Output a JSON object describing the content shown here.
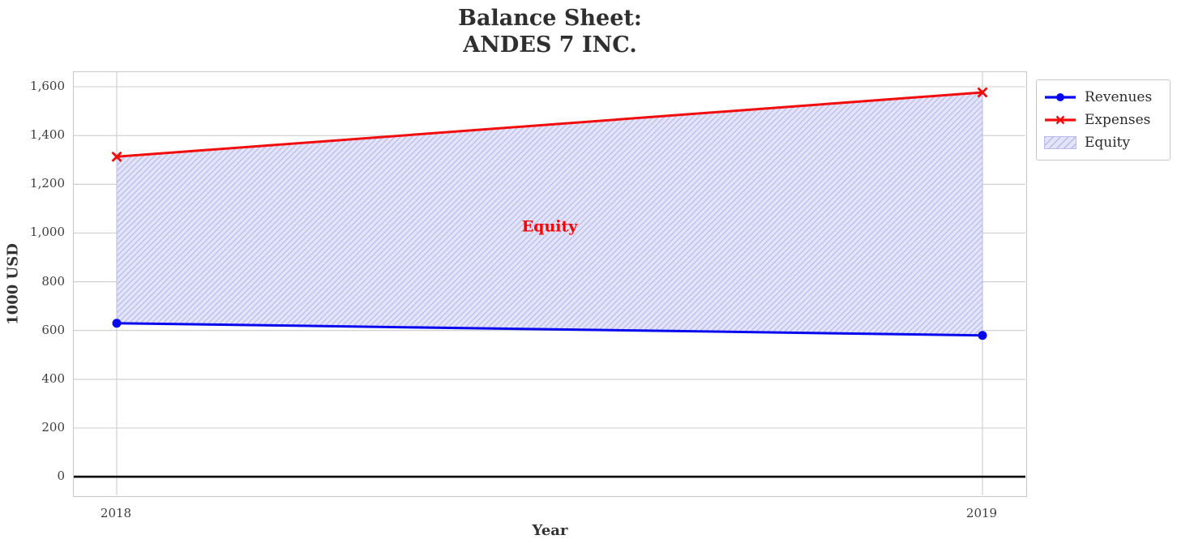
{
  "figure": {
    "title_line1": "Balance Sheet:",
    "title_line2": "ANDES 7 INC."
  },
  "chart_data": {
    "type": "line",
    "title": "Balance Sheet: ANDES 7 INC.",
    "xlabel": "Year",
    "ylabel": "1000 USD",
    "x": [
      2018,
      2019
    ],
    "xtick_labels": [
      "2018",
      "2019"
    ],
    "series": [
      {
        "name": "Revenues",
        "values": [
          630,
          580
        ],
        "color": "#0808ee",
        "marker": "circle",
        "line_width": 3
      },
      {
        "name": "Expenses",
        "values": [
          1313,
          1577
        ],
        "color": "#f20d0d",
        "marker": "x",
        "line_width": 3
      }
    ],
    "area": {
      "label": "Equity",
      "fill_between": [
        "Revenues",
        "Expenses"
      ],
      "face_color": "#e4e4f8",
      "hatch": "/",
      "hatch_color": "#b9b9ec"
    },
    "annotation": {
      "text": "Equity",
      "x": 2018.5,
      "y": 1030,
      "color": "#ff0000",
      "bold": true
    },
    "yticks": [
      0,
      200,
      400,
      600,
      800,
      1000,
      1200,
      1400,
      1600
    ],
    "ytick_labels": [
      "0",
      "200",
      "400",
      "600",
      "800",
      "1,000",
      "1,200",
      "1,400",
      "1,600"
    ],
    "ylim": [
      -76,
      1660
    ],
    "grid": true,
    "grid_color": "#cccccc",
    "zero_line": {
      "y": 0,
      "color": "#000000",
      "width": 2.6
    },
    "legend": {
      "position": "outside-top-right",
      "entries": [
        "Revenues",
        "Expenses",
        "Equity"
      ]
    }
  }
}
